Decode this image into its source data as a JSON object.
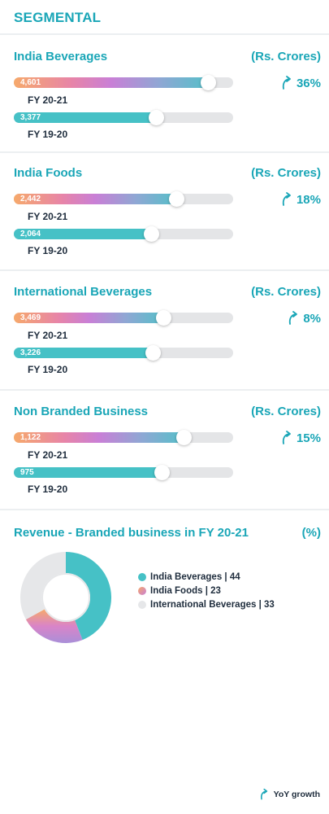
{
  "header": {
    "title": "SEGMENTAL"
  },
  "colors": {
    "accent": "#1aa6b7",
    "current_gradient": [
      "#f6a96b",
      "#e784a8",
      "#c97fd6",
      "#8fa7d4",
      "#56bfc9"
    ],
    "previous": "#46c1c6",
    "track": "#e4e5e7"
  },
  "icons": {
    "growth": "curved-up-arrow-icon"
  },
  "chart_data": [
    {
      "type": "bar",
      "title": "India Beverages",
      "unit": "(Rs. Crores)",
      "growth": "36%",
      "categories": [
        "FY 20-21",
        "FY 19-20"
      ],
      "values": [
        4601,
        3377
      ],
      "labels": [
        "4,601",
        "3,377"
      ],
      "xlim": [
        0,
        5200
      ]
    },
    {
      "type": "bar",
      "title": "India Foods",
      "unit": "(Rs. Crores)",
      "growth": "18%",
      "categories": [
        "FY 20-21",
        "FY 19-20"
      ],
      "values": [
        2442,
        2064
      ],
      "labels": [
        "2,442",
        "2,064"
      ],
      "xlim": [
        0,
        3300
      ]
    },
    {
      "type": "bar",
      "title": "International Beverages",
      "unit": "(Rs. Crores)",
      "growth": "8%",
      "categories": [
        "FY 20-21",
        "FY 19-20"
      ],
      "values": [
        3469,
        3226
      ],
      "labels": [
        "3,469",
        "3,226"
      ],
      "xlim": [
        0,
        5100
      ]
    },
    {
      "type": "bar",
      "title": "Non Branded Business",
      "unit": "(Rs. Crores)",
      "growth": "15%",
      "categories": [
        "FY 20-21",
        "FY 19-20"
      ],
      "values": [
        1122,
        975
      ],
      "labels": [
        "1,122",
        "975"
      ],
      "xlim": [
        0,
        1450
      ]
    },
    {
      "type": "pie",
      "title": "Revenue - Branded business in FY 20-21",
      "unit": "(%)",
      "donut": true,
      "slices": [
        {
          "label": "India Beverages | 44",
          "name": "India Beverages",
          "value": 44,
          "color": "#46c1c6"
        },
        {
          "label": "India Foods | 23",
          "name": "India Foods",
          "value": 23,
          "color": "#d984c8"
        },
        {
          "label": "International Beverages | 33",
          "name": "International Beverages",
          "value": 33,
          "color": "#e6e7e9"
        }
      ]
    }
  ],
  "footer": {
    "label": "YoY growth"
  }
}
